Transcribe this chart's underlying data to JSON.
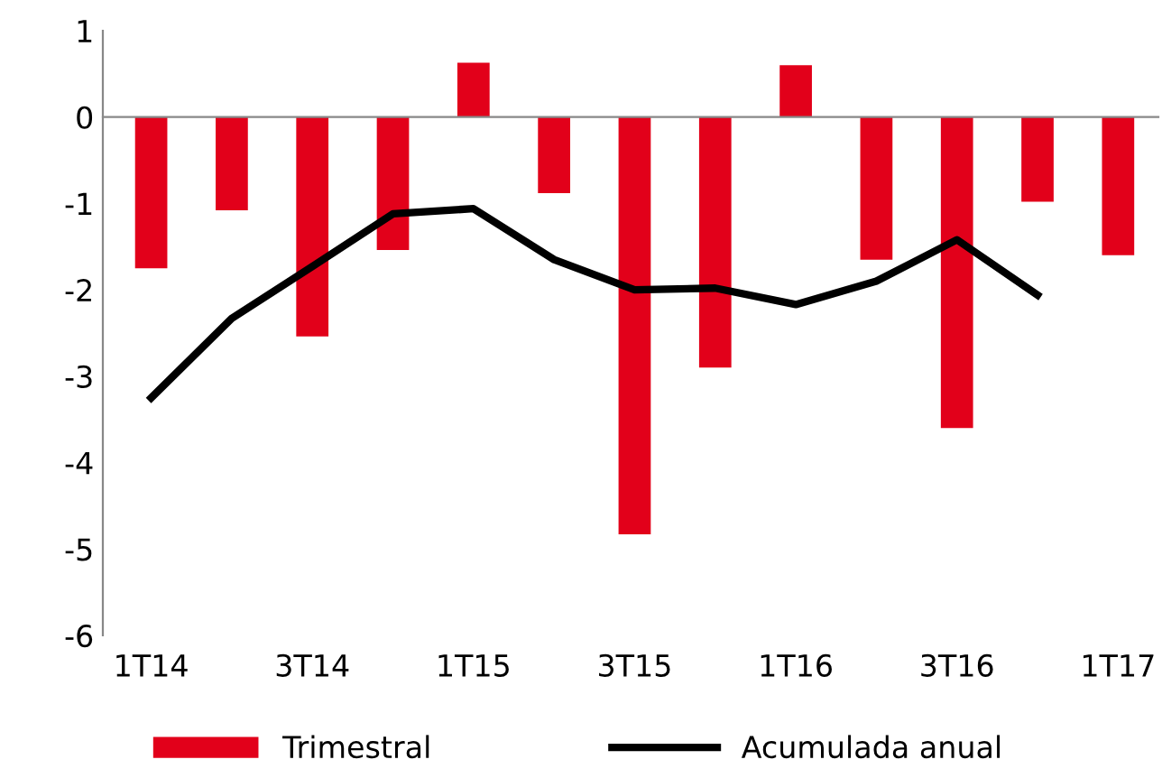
{
  "chart_data": {
    "type": "bar",
    "categories": [
      "1T14",
      null,
      "3T14",
      null,
      "1T15",
      null,
      "3T15",
      null,
      "1T16",
      null,
      "3T16",
      null,
      "1T17"
    ],
    "series": [
      {
        "name": "Trimestral",
        "color": "#e2001a",
        "values": [
          -1.75,
          -1.08,
          -2.54,
          -1.54,
          0.63,
          -0.88,
          -4.83,
          -2.9,
          0.6,
          -1.65,
          -3.6,
          -0.98,
          -1.6
        ]
      },
      {
        "name": "Acumulada anual",
        "type": "line",
        "color": "#000000",
        "values": [
          -3.25,
          -2.33,
          -1.73,
          -1.12,
          -1.06,
          -1.65,
          -2.0,
          -1.98,
          -2.17,
          -1.9,
          -1.42,
          -2.06,
          null
        ]
      }
    ],
    "ylim": [
      -6,
      1
    ],
    "yticks": [
      -6,
      -5,
      -4,
      -3,
      -2,
      -1,
      0,
      1
    ],
    "legend": "bottom",
    "marker": "none",
    "line_style": "solid"
  }
}
